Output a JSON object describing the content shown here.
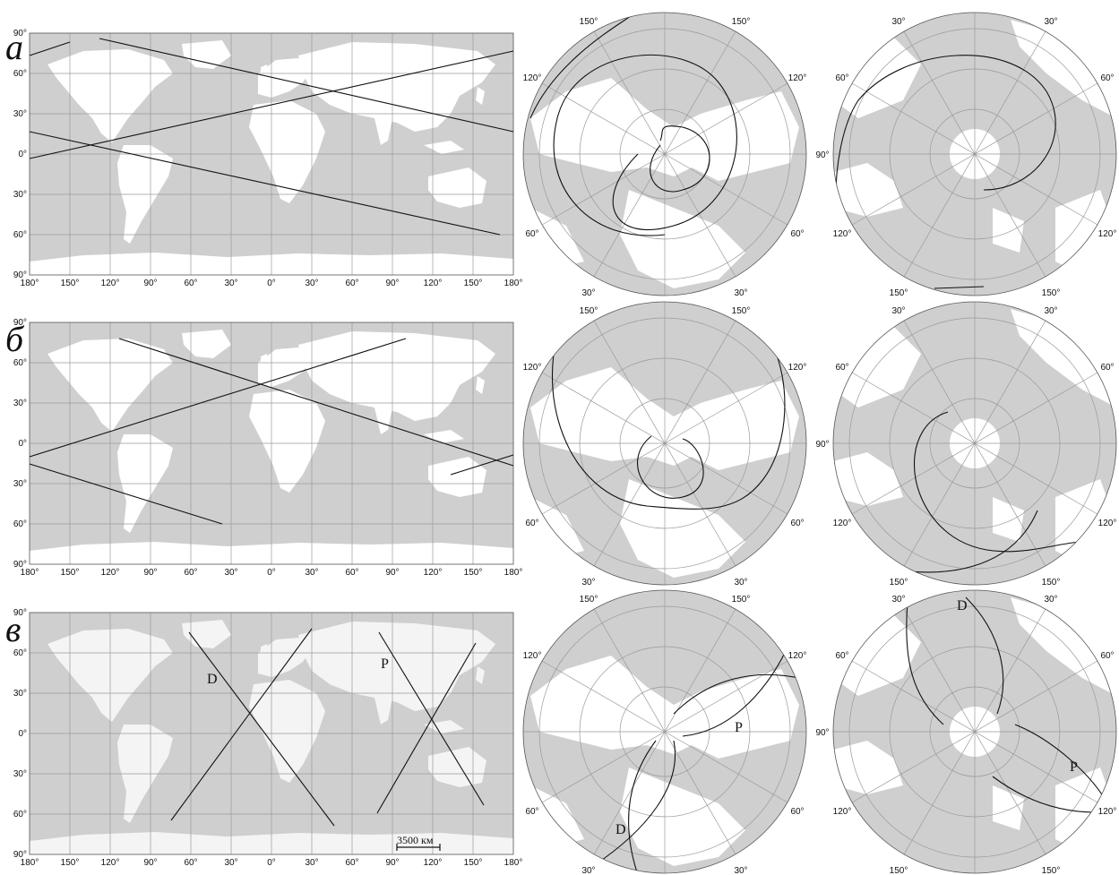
{
  "rows": [
    {
      "label": "а"
    },
    {
      "label": "б"
    },
    {
      "label": "в"
    }
  ],
  "lat_labels": [
    "90°",
    "60°",
    "30°",
    "0°",
    "30°",
    "60°",
    "90°"
  ],
  "lon_labels": [
    "180°",
    "150°",
    "120°",
    "90°",
    "60°",
    "30°",
    "0°",
    "30°",
    "60°",
    "90°",
    "120°",
    "150°",
    "180°"
  ],
  "polar_labels": {
    "north": [
      "150°",
      "150°",
      "120°",
      "120°",
      "60°",
      "60°",
      "30°",
      "30°"
    ],
    "south": [
      "30°",
      "30°",
      "60°",
      "60°",
      "90°",
      "120°",
      "120°",
      "150°",
      "150°"
    ]
  },
  "markers": {
    "D": "D",
    "P": "P"
  },
  "scale_bar": "3500 км",
  "colors": {
    "sea": "#cfcfcf",
    "land": "#ffffff",
    "land_highlight": "#f4f4f4",
    "track": "#111111",
    "grid": "#9a9a9a"
  }
}
